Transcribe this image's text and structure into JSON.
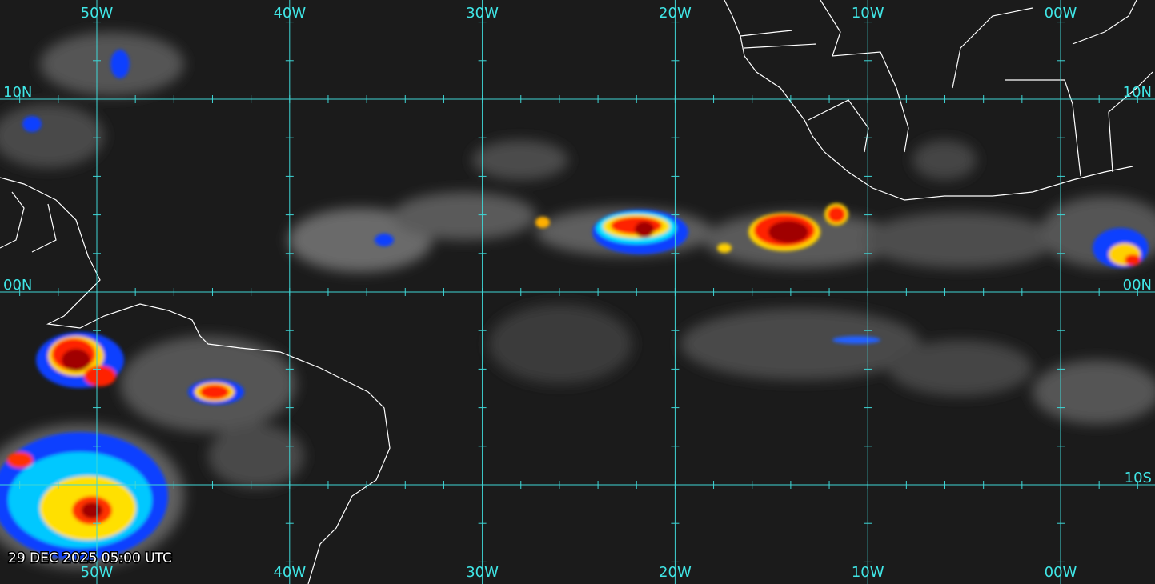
{
  "map": {
    "top_labels": [
      "50W",
      "40W",
      "30W",
      "20W",
      "10W",
      "00W"
    ],
    "bottom_labels": [
      "50W",
      "40W",
      "30W",
      "20W",
      "10W",
      "00W"
    ],
    "left_labels": [
      "10N",
      "00N"
    ],
    "right_labels": [
      "10N",
      "00N",
      "10S"
    ],
    "timestamp": "29 DEC 2025 05:00 UTC"
  }
}
